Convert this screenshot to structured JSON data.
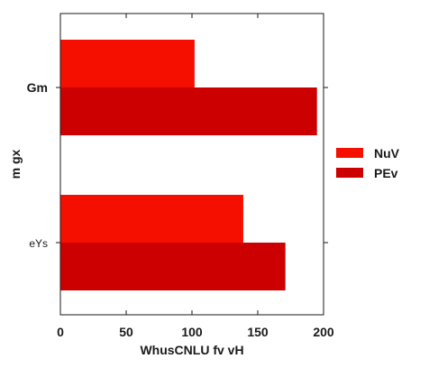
{
  "chart_data": {
    "type": "bar",
    "orientation": "horizontal",
    "categories": [
      "Gm",
      "eYs"
    ],
    "series": [
      {
        "name": "NuV",
        "values": [
          102,
          139
        ],
        "color": "#f50f00"
      },
      {
        "name": "PEv",
        "values": [
          195,
          171
        ],
        "color": "#cc0000"
      }
    ],
    "xlabel": "WhusCNLU fv vH",
    "ylabel": "m gx",
    "xlim": [
      0,
      200
    ],
    "xticks": [
      0,
      50,
      100,
      150,
      200
    ],
    "xtick_labels": [
      "0",
      "50",
      "100",
      "150",
      "200"
    ],
    "grid": false,
    "legend_position": "right"
  }
}
